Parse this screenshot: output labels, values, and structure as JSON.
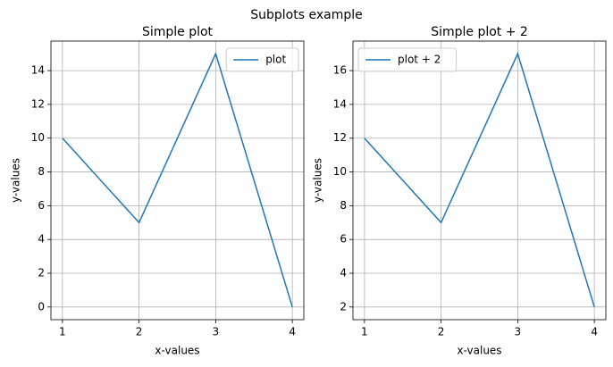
{
  "title": "Subplots example",
  "chart_data": [
    {
      "type": "line",
      "title": "Simple plot",
      "x_label": "x-values",
      "y_label": "y-values",
      "x": [
        1,
        2,
        3,
        4
      ],
      "series": [
        {
          "name": "plot",
          "color": "#1f77b4",
          "values": [
            10,
            5,
            15,
            0
          ]
        }
      ],
      "xlim": [
        0.85,
        4.15
      ],
      "xticks": [
        1,
        2,
        3,
        4
      ],
      "ylim": [
        -0.75,
        15.75
      ],
      "yticks": [
        0,
        2,
        4,
        6,
        8,
        10,
        12,
        14
      ],
      "grid": true,
      "legend": "upper right"
    },
    {
      "type": "line",
      "title": "Simple plot + 2",
      "x_label": "x-values",
      "y_label": "y-values",
      "x": [
        1,
        2,
        3,
        4
      ],
      "series": [
        {
          "name": "plot + 2",
          "color": "#1f77b4",
          "values": [
            12,
            7,
            17,
            2
          ]
        }
      ],
      "xlim": [
        0.85,
        4.15
      ],
      "xticks": [
        1,
        2,
        3,
        4
      ],
      "ylim": [
        1.25,
        17.75
      ],
      "yticks": [
        2,
        4,
        6,
        8,
        10,
        12,
        14,
        16
      ],
      "grid": true,
      "legend": "upper left"
    }
  ]
}
